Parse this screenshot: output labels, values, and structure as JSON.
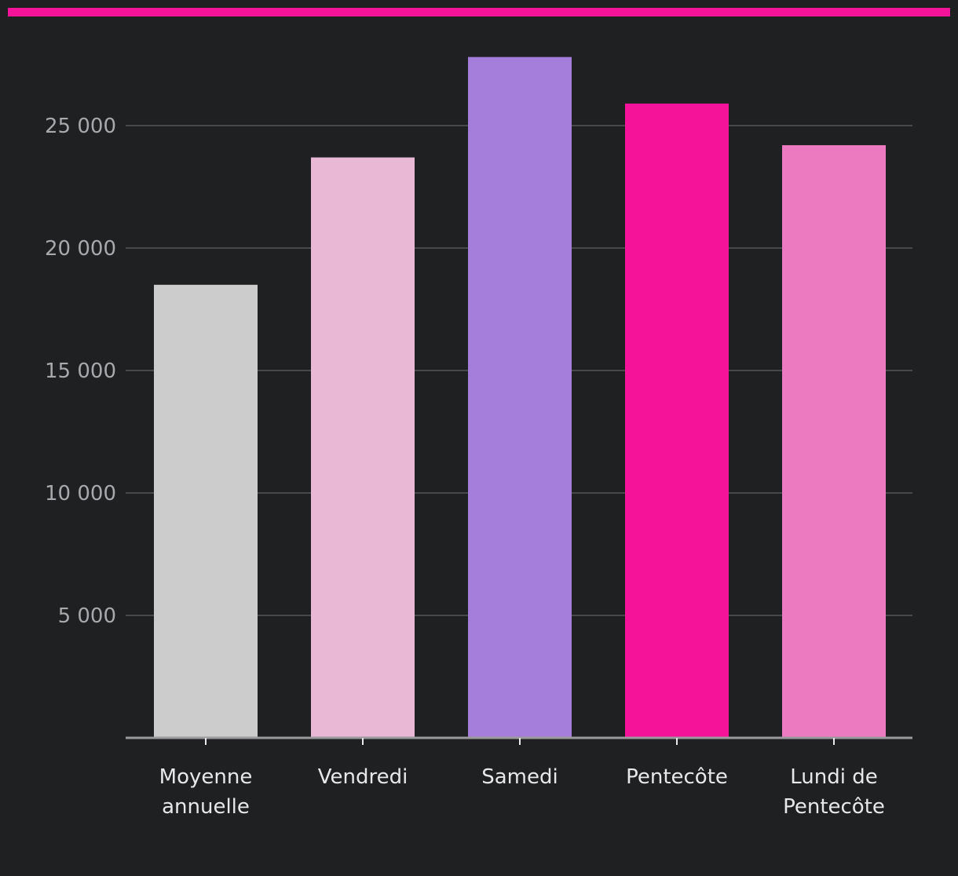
{
  "colors": {
    "background": "#1f2022",
    "accent": "#f5139a",
    "grid": "#555558",
    "axis": "#9a9a9d"
  },
  "chart_data": {
    "type": "bar",
    "categories": [
      [
        "Moyenne",
        "annuelle"
      ],
      [
        "Vendredi"
      ],
      [
        "Samedi"
      ],
      [
        "Pentecôte"
      ],
      [
        "Lundi de",
        "Pentecôte"
      ]
    ],
    "values": [
      18500,
      23700,
      27800,
      25900,
      24200
    ],
    "bar_colors": [
      "#cccccc",
      "#e8b8d5",
      "#a57ddb",
      "#f5139a",
      "#ec7ac0"
    ],
    "yticks": [
      {
        "value": 5000,
        "label": "5 000"
      },
      {
        "value": 10000,
        "label": "10 000"
      },
      {
        "value": 15000,
        "label": "15 000"
      },
      {
        "value": 20000,
        "label": "20 000"
      },
      {
        "value": 25000,
        "label": "25 000"
      }
    ],
    "ylim": [
      0,
      28000
    ],
    "grid": true,
    "title": "",
    "xlabel": "",
    "ylabel": ""
  }
}
